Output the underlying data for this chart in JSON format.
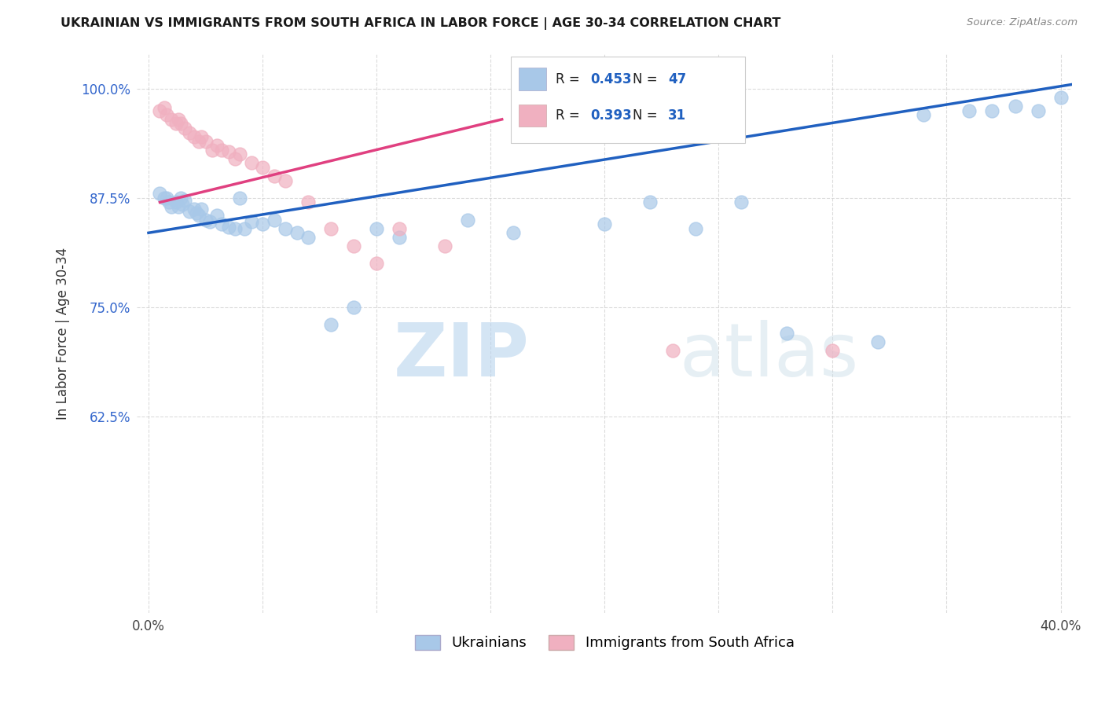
{
  "title": "UKRAINIAN VS IMMIGRANTS FROM SOUTH AFRICA IN LABOR FORCE | AGE 30-34 CORRELATION CHART",
  "source": "Source: ZipAtlas.com",
  "ylabel": "In Labor Force | Age 30-34",
  "xlim": [
    -0.005,
    0.405
  ],
  "ylim": [
    0.4,
    1.04
  ],
  "xticks": [
    0.0,
    0.05,
    0.1,
    0.15,
    0.2,
    0.25,
    0.3,
    0.35,
    0.4
  ],
  "xticklabels": [
    "0.0%",
    "",
    "",
    "",
    "",
    "",
    "",
    "",
    "40.0%"
  ],
  "yticks": [
    0.625,
    0.75,
    0.875,
    1.0
  ],
  "yticklabels": [
    "62.5%",
    "75.0%",
    "87.5%",
    "100.0%"
  ],
  "blue_color": "#a8c8e8",
  "pink_color": "#f0b0c0",
  "blue_line_color": "#2060c0",
  "pink_line_color": "#e04080",
  "R_blue": 0.453,
  "N_blue": 47,
  "R_pink": 0.393,
  "N_pink": 31,
  "watermark_zip": "ZIP",
  "watermark_atlas": "atlas",
  "legend_ukrainians": "Ukrainians",
  "legend_immigrants": "Immigrants from South Africa",
  "blue_scatter_x": [
    0.005,
    0.007,
    0.008,
    0.009,
    0.01,
    0.012,
    0.013,
    0.014,
    0.015,
    0.016,
    0.018,
    0.02,
    0.021,
    0.022,
    0.023,
    0.025,
    0.027,
    0.03,
    0.032,
    0.035,
    0.038,
    0.04,
    0.042,
    0.045,
    0.05,
    0.055,
    0.06,
    0.065,
    0.07,
    0.08,
    0.09,
    0.1,
    0.11,
    0.14,
    0.16,
    0.2,
    0.22,
    0.24,
    0.26,
    0.28,
    0.32,
    0.34,
    0.36,
    0.37,
    0.38,
    0.39,
    0.4
  ],
  "blue_scatter_y": [
    0.88,
    0.875,
    0.875,
    0.87,
    0.865,
    0.87,
    0.865,
    0.875,
    0.868,
    0.872,
    0.86,
    0.862,
    0.858,
    0.855,
    0.862,
    0.85,
    0.848,
    0.855,
    0.845,
    0.842,
    0.84,
    0.875,
    0.84,
    0.848,
    0.845,
    0.85,
    0.84,
    0.835,
    0.83,
    0.73,
    0.75,
    0.84,
    0.83,
    0.85,
    0.835,
    0.845,
    0.87,
    0.84,
    0.87,
    0.72,
    0.71,
    0.97,
    0.975,
    0.975,
    0.98,
    0.975,
    0.99
  ],
  "pink_scatter_x": [
    0.005,
    0.007,
    0.008,
    0.01,
    0.012,
    0.013,
    0.014,
    0.016,
    0.018,
    0.02,
    0.022,
    0.023,
    0.025,
    0.028,
    0.03,
    0.032,
    0.035,
    0.038,
    0.04,
    0.045,
    0.05,
    0.055,
    0.06,
    0.07,
    0.08,
    0.09,
    0.1,
    0.11,
    0.13,
    0.23,
    0.3
  ],
  "pink_scatter_y": [
    0.975,
    0.978,
    0.97,
    0.965,
    0.96,
    0.965,
    0.96,
    0.955,
    0.95,
    0.945,
    0.94,
    0.945,
    0.94,
    0.93,
    0.935,
    0.93,
    0.928,
    0.92,
    0.925,
    0.915,
    0.91,
    0.9,
    0.895,
    0.87,
    0.84,
    0.82,
    0.8,
    0.84,
    0.82,
    0.7,
    0.7
  ]
}
